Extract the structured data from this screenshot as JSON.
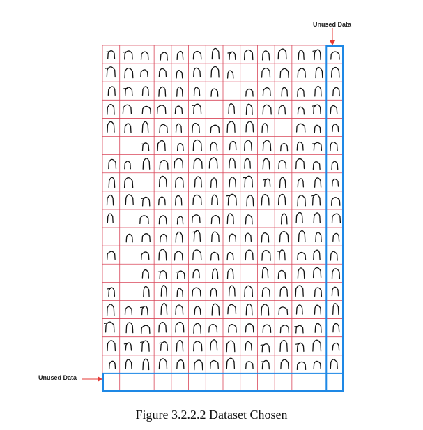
{
  "figure": {
    "caption": "Figure 3.2.2.2 Dataset Chosen",
    "annotations": {
      "top": "Unused Data",
      "left": "Unused Data"
    },
    "colors": {
      "grid_line": "#d9475a",
      "highlight_box": "#1e88e5",
      "arrow": "#e53935",
      "glyph": "#111111"
    },
    "grid": {
      "rows": 19,
      "cols": 14,
      "used_rows": 18,
      "used_cols": 13,
      "glyph_name": "handwritten-arch-character"
    }
  }
}
